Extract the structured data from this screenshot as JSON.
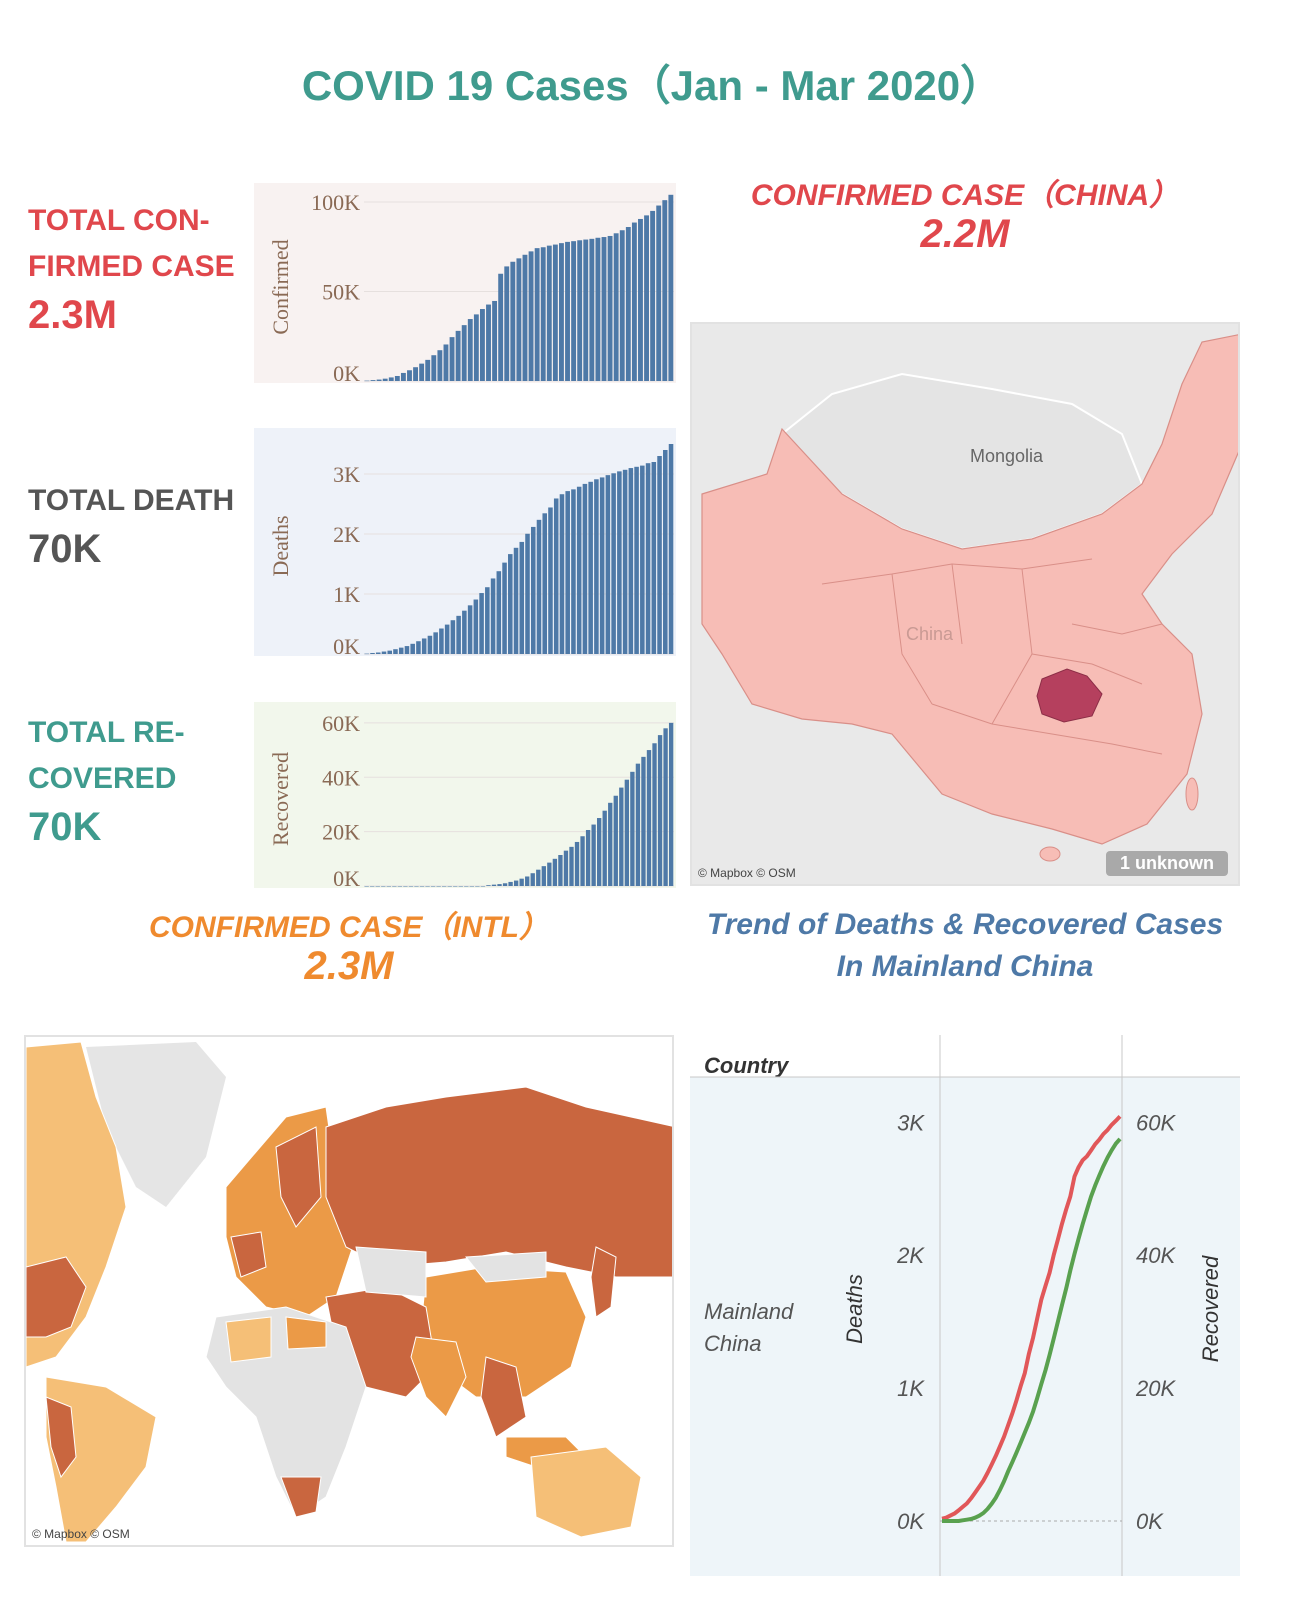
{
  "title": "COVID 19 Cases（Jan - Mar 2020）",
  "kpis": {
    "confirmed": {
      "label_line1": "TOTAL CON-",
      "label_line2": "FIRMED CASE",
      "value": "2.3M"
    },
    "death": {
      "label_line1": "TOTAL DEATH",
      "value": "70K"
    },
    "recovered": {
      "label_line1": "TOTAL RE-",
      "label_line2": "COVERED",
      "value": "70K"
    }
  },
  "china_section": {
    "title": "CONFIRMED CASE（CHINA）",
    "value": "2.2M"
  },
  "intl_section": {
    "title": "CONFIRMED CASE（INTL）",
    "value": "2.3M"
  },
  "trend_section": {
    "title_line1": "Trend of Deaths & Recovered Cases",
    "title_line2": "In Mainland China"
  },
  "china_map": {
    "labels": [
      "Mongolia",
      "China"
    ],
    "credit": "© Mapbox © OSM",
    "badge": "1 unknown",
    "colors": {
      "land": "#f7bdb6",
      "hubei": "#b5405e",
      "other": "#e6e6e6"
    }
  },
  "world_map": {
    "credit": "© Mapbox © OSM",
    "colors": {
      "dark": "#c9663f",
      "mid": "#eb9a47",
      "light": "#f5bf77",
      "none": "#e3e3e3"
    }
  },
  "colors": {
    "bar": "#4e79a7",
    "deaths_line": "#e15759",
    "recovered_line": "#59a14f"
  },
  "chart_data": [
    {
      "type": "bar",
      "ylabel": "Confirmed",
      "ylim": [
        0,
        105000
      ],
      "yticks": [
        "0K",
        "50K",
        "100K"
      ],
      "ytick_values": [
        0,
        50000,
        100000
      ],
      "values": [
        200,
        500,
        800,
        1300,
        2000,
        2800,
        4500,
        6000,
        7700,
        9700,
        11800,
        14400,
        17200,
        20400,
        24500,
        28000,
        31200,
        34600,
        37200,
        40200,
        42700,
        44700,
        59900,
        64000,
        66600,
        68500,
        70500,
        72400,
        74200,
        74700,
        75600,
        76200,
        77000,
        77700,
        78100,
        78600,
        79000,
        79400,
        80000,
        80400,
        81000,
        82500,
        84200,
        86000,
        88500,
        90500,
        92500,
        95000,
        98000,
        101000,
        104000
      ]
    },
    {
      "type": "bar",
      "ylabel": "Deaths",
      "ylim": [
        0,
        3600
      ],
      "yticks": [
        "0K",
        "1K",
        "2K",
        "3K"
      ],
      "ytick_values": [
        0,
        1000,
        2000,
        3000
      ],
      "values": [
        6,
        17,
        25,
        41,
        56,
        80,
        106,
        132,
        170,
        213,
        259,
        304,
        361,
        425,
        490,
        563,
        636,
        722,
        811,
        908,
        1016,
        1113,
        1259,
        1380,
        1523,
        1665,
        1770,
        1868,
        2004,
        2118,
        2236,
        2345,
        2442,
        2592,
        2663,
        2715,
        2744,
        2788,
        2835,
        2870,
        2912,
        2943,
        2981,
        3012,
        3044,
        3070,
        3099,
        3120,
        3140,
        3180,
        3200,
        3300,
        3400,
        3500
      ]
    },
    {
      "type": "bar",
      "ylabel": "Recovered",
      "ylim": [
        0,
        64000
      ],
      "yticks": [
        "0K",
        "20K",
        "40K",
        "60K"
      ],
      "ytick_values": [
        0,
        20000,
        40000,
        60000
      ],
      "values": [
        0,
        0,
        0,
        0,
        0,
        0,
        0,
        0,
        0,
        0,
        0,
        0,
        0,
        0,
        0,
        0,
        0,
        0,
        0,
        0,
        0,
        0,
        300,
        500,
        700,
        1000,
        1500,
        2000,
        2700,
        3500,
        4700,
        6000,
        7300,
        8600,
        10000,
        11400,
        13000,
        14400,
        16200,
        18300,
        20600,
        22600,
        25000,
        27700,
        30600,
        33200,
        36200,
        39100,
        42000,
        45000,
        47500,
        50000,
        52500,
        55500,
        58000,
        60000
      ]
    },
    {
      "type": "line",
      "row_header": "Country",
      "row_label": "Mainland China",
      "ylabel_left": "Deaths",
      "ylabel_right": "Recovered",
      "ylim_left": [
        0,
        3100
      ],
      "ylim_right": [
        0,
        62000
      ],
      "yticks_left": [
        "0K",
        "1K",
        "2K",
        "3K"
      ],
      "ytick_values_left": [
        0,
        1000,
        2000,
        3000
      ],
      "yticks_right": [
        "0K",
        "20K",
        "40K",
        "60K"
      ],
      "ytick_values_right": [
        0,
        20000,
        40000,
        60000
      ],
      "series": [
        {
          "name": "Deaths",
          "axis": "left",
          "values": [
            17,
            25,
            41,
            56,
            80,
            106,
            132,
            170,
            213,
            259,
            304,
            361,
            425,
            490,
            563,
            636,
            722,
            811,
            908,
            1016,
            1113,
            1259,
            1380,
            1523,
            1665,
            1770,
            1868,
            2004,
            2118,
            2236,
            2345,
            2442,
            2592,
            2663,
            2715,
            2744,
            2788,
            2835,
            2870,
            2912,
            2943,
            2981,
            3012,
            3044
          ]
        },
        {
          "name": "Recovered",
          "axis": "right",
          "values": [
            0,
            0,
            0,
            0,
            0,
            100,
            200,
            300,
            500,
            800,
            1200,
            1800,
            2600,
            3500,
            4700,
            6000,
            7500,
            8900,
            10300,
            11800,
            13300,
            14800,
            16500,
            18500,
            20600,
            22700,
            25000,
            27500,
            30000,
            32500,
            35000,
            37700,
            40200,
            42500,
            44700,
            46800,
            48800,
            50500,
            52000,
            53400,
            54700,
            55800,
            56800,
            57500
          ]
        }
      ]
    }
  ]
}
